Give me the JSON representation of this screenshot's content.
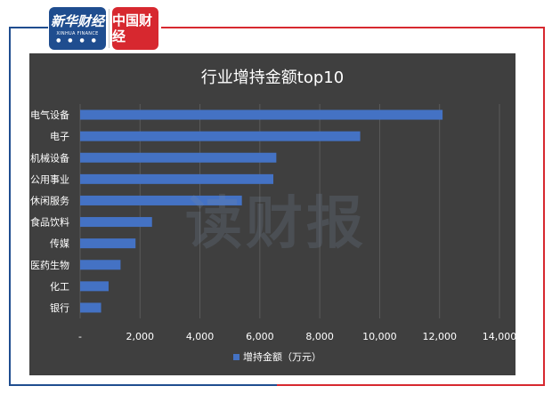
{
  "logos": {
    "xinhua_brand": "新华财经",
    "xinhua_sub": "XINHUA FINANCE",
    "zhongguo_brand": "中国财经"
  },
  "watermark": "读财报",
  "colors": {
    "bar": "#4472c4",
    "panel_bg": "#3f3f3f",
    "grid": "#5a5a5a",
    "text": "#ffffff",
    "frame_blue": "#1f4d8f",
    "frame_red": "#d7282f"
  },
  "chart_data": {
    "type": "bar",
    "orientation": "horizontal",
    "title": "行业增持金额top10",
    "categories": [
      "电气设备",
      "电子",
      "机械设备",
      "公用事业",
      "休闲服务",
      "食品饮料",
      "传媒",
      "医药生物",
      "化工",
      "银行"
    ],
    "series": [
      {
        "name": "增持金额（万元）",
        "values": [
          12100,
          9350,
          6550,
          6450,
          5400,
          2400,
          1850,
          1350,
          950,
          700
        ]
      }
    ],
    "xlim": [
      0,
      14000
    ],
    "x_ticks": [
      "-",
      "2,000",
      "4,000",
      "6,000",
      "8,000",
      "10,000",
      "12,000",
      "14,000"
    ],
    "grid": true,
    "legend_position": "bottom"
  }
}
